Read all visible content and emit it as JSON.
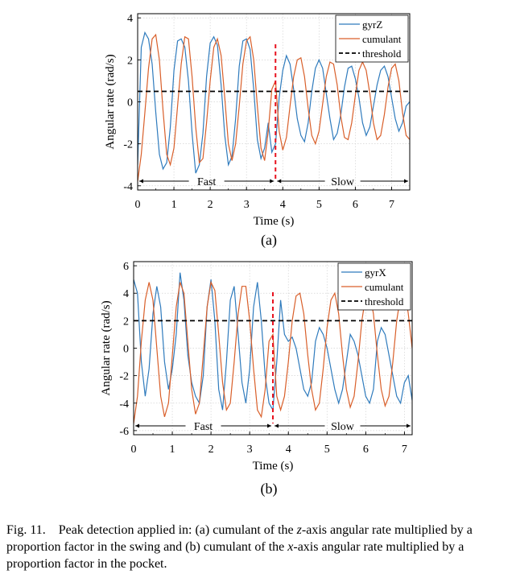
{
  "chart_data": [
    {
      "type": "line",
      "panel_label": "(a)",
      "xlabel": "Time (s)",
      "ylabel": "Angular rate (rad/s)",
      "xlim": [
        0,
        7.5
      ],
      "ylim": [
        -4.2,
        4.2
      ],
      "xticks": [
        0,
        1,
        2,
        3,
        4,
        5,
        6,
        7
      ],
      "yticks": [
        -4,
        -2,
        0,
        2,
        4
      ],
      "grid": true,
      "legend_position": "top-right",
      "threshold": 0.5,
      "split_time": 3.8,
      "segments": [
        {
          "label": "Fast",
          "from": 0,
          "to": 3.8
        },
        {
          "label": "Slow",
          "from": 3.8,
          "to": 7.5
        }
      ],
      "series": [
        {
          "name": "gyrZ",
          "color": "#2f7bbd",
          "x": [
            0.0,
            0.1,
            0.2,
            0.3,
            0.4,
            0.5,
            0.6,
            0.7,
            0.8,
            0.9,
            1.0,
            1.1,
            1.2,
            1.3,
            1.4,
            1.5,
            1.6,
            1.7,
            1.8,
            1.9,
            2.0,
            2.1,
            2.2,
            2.3,
            2.4,
            2.5,
            2.6,
            2.7,
            2.8,
            2.9,
            3.0,
            3.1,
            3.2,
            3.3,
            3.4,
            3.5,
            3.6,
            3.7,
            3.8,
            3.9,
            4.0,
            4.1,
            4.2,
            4.3,
            4.4,
            4.5,
            4.6,
            4.7,
            4.8,
            4.9,
            5.0,
            5.1,
            5.2,
            5.3,
            5.4,
            5.5,
            5.6,
            5.7,
            5.8,
            5.9,
            6.0,
            6.1,
            6.2,
            6.3,
            6.4,
            6.5,
            6.6,
            6.7,
            6.8,
            6.9,
            7.0,
            7.1,
            7.2,
            7.3,
            7.4,
            7.5
          ],
          "y": [
            -3.0,
            2.6,
            3.3,
            3.0,
            1.8,
            -0.5,
            -2.5,
            -3.2,
            -2.9,
            -1.2,
            1.5,
            2.9,
            3.0,
            2.6,
            1.0,
            -1.5,
            -3.4,
            -3.0,
            -1.5,
            1.2,
            2.8,
            3.1,
            2.7,
            0.8,
            -1.6,
            -3.0,
            -2.6,
            -0.8,
            1.7,
            2.9,
            3.0,
            2.5,
            0.6,
            -1.8,
            -2.7,
            -2.2,
            -1.0,
            -2.4,
            -2.0,
            0.2,
            1.5,
            2.2,
            1.8,
            0.6,
            -0.8,
            -1.6,
            -1.9,
            -1.0,
            0.5,
            1.6,
            2.0,
            1.6,
            0.4,
            -0.8,
            -1.8,
            -1.5,
            -0.6,
            0.7,
            1.6,
            1.7,
            1.1,
            0.2,
            -1.0,
            -1.6,
            -1.2,
            -0.2,
            0.8,
            1.5,
            1.7,
            1.2,
            0.2,
            -0.8,
            -1.4,
            -1.0,
            -0.2,
            0.0
          ]
        },
        {
          "name": "cumulant",
          "color": "#d95f2a",
          "x": [
            0.0,
            0.1,
            0.2,
            0.3,
            0.4,
            0.5,
            0.6,
            0.7,
            0.8,
            0.9,
            1.0,
            1.1,
            1.2,
            1.3,
            1.4,
            1.5,
            1.6,
            1.7,
            1.8,
            1.9,
            2.0,
            2.1,
            2.2,
            2.3,
            2.4,
            2.5,
            2.6,
            2.7,
            2.8,
            2.9,
            3.0,
            3.1,
            3.2,
            3.3,
            3.4,
            3.5,
            3.6,
            3.7,
            3.8,
            3.9,
            4.0,
            4.1,
            4.2,
            4.3,
            4.4,
            4.5,
            4.6,
            4.7,
            4.8,
            4.9,
            5.0,
            5.1,
            5.2,
            5.3,
            5.4,
            5.5,
            5.6,
            5.7,
            5.8,
            5.9,
            6.0,
            6.1,
            6.2,
            6.3,
            6.4,
            6.5,
            6.6,
            6.7,
            6.8,
            6.9,
            7.0,
            7.1,
            7.2,
            7.3,
            7.4,
            7.5
          ],
          "y": [
            -3.8,
            -2.5,
            -0.5,
            1.6,
            3.0,
            3.2,
            2.0,
            -0.4,
            -2.5,
            -3.0,
            -2.2,
            -0.2,
            1.8,
            3.1,
            3.0,
            1.2,
            -1.2,
            -2.9,
            -2.7,
            -1.0,
            1.0,
            2.6,
            3.0,
            2.2,
            0.2,
            -2.0,
            -2.8,
            -2.0,
            -0.2,
            1.8,
            2.9,
            3.1,
            2.0,
            -0.2,
            -2.2,
            -2.8,
            -1.4,
            0.6,
            1.0,
            -1.4,
            -2.3,
            -1.7,
            -0.2,
            1.2,
            2.0,
            2.1,
            1.2,
            -0.3,
            -1.6,
            -2.0,
            -1.4,
            -0.1,
            1.2,
            1.9,
            1.8,
            0.8,
            -0.7,
            -1.7,
            -1.8,
            -1.0,
            0.3,
            1.5,
            1.9,
            1.5,
            0.4,
            -1.0,
            -1.8,
            -1.6,
            -0.6,
            0.7,
            1.6,
            1.8,
            1.0,
            -0.5,
            -1.6,
            -1.8
          ]
        }
      ],
      "legend": [
        "gyrZ",
        "cumulant",
        "threshold"
      ]
    },
    {
      "type": "line",
      "panel_label": "(b)",
      "xlabel": "Time (s)",
      "ylabel": "Angular rate (rad/s)",
      "xlim": [
        0,
        7.2
      ],
      "ylim": [
        -6.3,
        6.3
      ],
      "xticks": [
        0,
        1,
        2,
        3,
        4,
        5,
        6,
        7
      ],
      "yticks": [
        -6,
        -4,
        -2,
        0,
        2,
        4,
        6
      ],
      "grid": true,
      "legend_position": "top-right",
      "threshold": 2,
      "split_time": 3.6,
      "segments": [
        {
          "label": "Fast",
          "from": 0,
          "to": 3.6
        },
        {
          "label": "Slow",
          "from": 3.6,
          "to": 7.2
        }
      ],
      "series": [
        {
          "name": "gyrX",
          "color": "#2f7bbd",
          "x": [
            0.0,
            0.1,
            0.2,
            0.3,
            0.4,
            0.5,
            0.6,
            0.7,
            0.8,
            0.9,
            1.0,
            1.1,
            1.2,
            1.3,
            1.4,
            1.5,
            1.6,
            1.7,
            1.8,
            1.9,
            2.0,
            2.1,
            2.2,
            2.3,
            2.4,
            2.5,
            2.6,
            2.7,
            2.8,
            2.9,
            3.0,
            3.1,
            3.2,
            3.3,
            3.4,
            3.5,
            3.6,
            3.7,
            3.8,
            3.9,
            4.0,
            4.1,
            4.2,
            4.3,
            4.4,
            4.5,
            4.6,
            4.7,
            4.8,
            4.9,
            5.0,
            5.1,
            5.2,
            5.3,
            5.4,
            5.5,
            5.6,
            5.7,
            5.8,
            5.9,
            6.0,
            6.1,
            6.2,
            6.3,
            6.4,
            6.5,
            6.6,
            6.7,
            6.8,
            6.9,
            7.0,
            7.1,
            7.2
          ],
          "y": [
            5.0,
            4.0,
            -1.0,
            -3.5,
            -1.5,
            2.5,
            4.5,
            3.0,
            -1.0,
            -3.0,
            -1.5,
            1.0,
            5.5,
            3.5,
            -0.5,
            -2.5,
            -3.5,
            -4.0,
            -2.0,
            3.0,
            5.0,
            2.0,
            -3.0,
            -4.5,
            -1.0,
            3.5,
            4.5,
            1.0,
            -2.5,
            -4.0,
            -1.5,
            3.0,
            4.8,
            2.0,
            -2.0,
            -4.0,
            -4.5,
            -1.0,
            3.5,
            1.0,
            0.5,
            0.8,
            0.0,
            -1.5,
            -3.0,
            -3.5,
            -2.5,
            0.5,
            1.5,
            1.0,
            0.0,
            -1.5,
            -3.0,
            -4.0,
            -3.0,
            -1.0,
            1.0,
            0.5,
            -0.5,
            -2.0,
            -3.5,
            -4.0,
            -3.0,
            0.5,
            1.5,
            1.0,
            -0.5,
            -2.0,
            -3.5,
            -4.0,
            -2.5,
            -2.0,
            -3.8
          ]
        },
        {
          "name": "cumulant",
          "color": "#d95f2a",
          "x": [
            0.0,
            0.1,
            0.2,
            0.3,
            0.4,
            0.5,
            0.6,
            0.7,
            0.8,
            0.9,
            1.0,
            1.1,
            1.2,
            1.3,
            1.4,
            1.5,
            1.6,
            1.7,
            1.8,
            1.9,
            2.0,
            2.1,
            2.2,
            2.3,
            2.4,
            2.5,
            2.6,
            2.7,
            2.8,
            2.9,
            3.0,
            3.1,
            3.2,
            3.3,
            3.4,
            3.5,
            3.6,
            3.7,
            3.8,
            3.9,
            4.0,
            4.1,
            4.2,
            4.3,
            4.4,
            4.5,
            4.6,
            4.7,
            4.8,
            4.9,
            5.0,
            5.1,
            5.2,
            5.3,
            5.4,
            5.5,
            5.6,
            5.7,
            5.8,
            5.9,
            6.0,
            6.1,
            6.2,
            6.3,
            6.4,
            6.5,
            6.6,
            6.7,
            6.8,
            6.9,
            7.0,
            7.1,
            7.2
          ],
          "y": [
            -5.5,
            -3.5,
            0.5,
            3.5,
            4.8,
            3.5,
            0.0,
            -3.5,
            -5.0,
            -4.0,
            -0.5,
            3.0,
            4.8,
            4.0,
            0.5,
            -3.0,
            -4.8,
            -4.0,
            -0.5,
            3.0,
            4.8,
            4.2,
            1.0,
            -2.5,
            -4.5,
            -4.0,
            -1.0,
            2.5,
            4.5,
            4.5,
            2.0,
            -1.5,
            -4.5,
            -5.0,
            -3.0,
            0.5,
            1.0,
            -3.5,
            -4.5,
            -3.5,
            -1.0,
            2.0,
            3.8,
            4.0,
            2.5,
            -0.5,
            -3.0,
            -4.5,
            -4.0,
            -1.5,
            1.5,
            3.5,
            4.0,
            2.5,
            -0.5,
            -3.0,
            -4.3,
            -3.5,
            -1.0,
            2.0,
            3.8,
            4.0,
            2.5,
            -0.5,
            -3.0,
            -4.2,
            -3.5,
            -1.0,
            2.0,
            3.8,
            4.5,
            2.5,
            0.0
          ]
        }
      ],
      "legend": [
        "gyrX",
        "cumulant",
        "threshold"
      ]
    }
  ],
  "caption": {
    "prefix": "Fig. 11.",
    "text_1": "Peak detection applied in: (a) cumulant of the ",
    "axis_z": "z",
    "text_2": "-axis angular rate multiplied by a proportion factor in the swing and (b) cumulant of the ",
    "axis_x": "x",
    "text_3": "-axis angular rate multiplied by a proportion factor in the pocket."
  },
  "colors": {
    "gyro": "#2f7bbd",
    "cumulant": "#d95f2a",
    "threshold": "#000000",
    "split": "#e8121f",
    "grid": "#d3d3d3"
  }
}
